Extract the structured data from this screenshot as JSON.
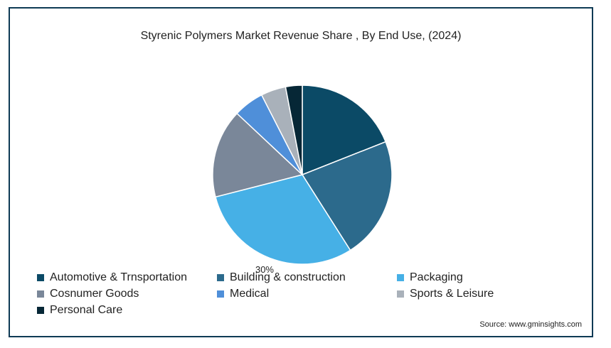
{
  "chart_data": {
    "type": "pie",
    "title": "Styrenic Polymers Market Revenue Share , By End Use, (2024)",
    "slices": [
      {
        "label": "Automotive & Trnsportation",
        "value": 19,
        "color": "#0b4a66"
      },
      {
        "label": "Building & construction",
        "value": 22,
        "color": "#2c6a8c"
      },
      {
        "label": "Packaging",
        "value": 30,
        "color": "#46b0e6"
      },
      {
        "label": "Cosnumer Goods",
        "value": 16,
        "color": "#7a8799"
      },
      {
        "label": "Medical",
        "value": 5.5,
        "color": "#4f8fd9"
      },
      {
        "label": "Sports & Leisure",
        "value": 4.5,
        "color": "#a9b1ba"
      },
      {
        "label": "Personal Care",
        "value": 3,
        "color": "#062736"
      }
    ],
    "data_labels": [
      {
        "slice": "Packaging",
        "text": "30%"
      }
    ],
    "legend_position": "bottom"
  },
  "source": "Source: www.gminsights.com"
}
